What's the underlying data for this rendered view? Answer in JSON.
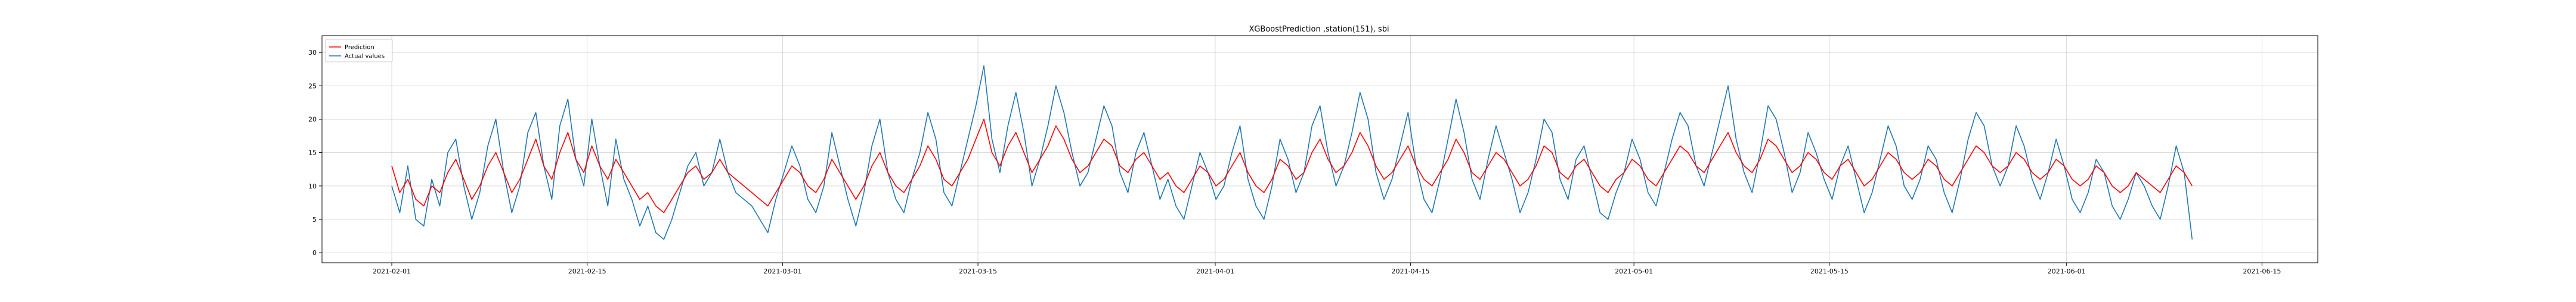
{
  "chart_data": {
    "type": "line",
    "title": "XGBoostPrediction ,station(151), sbi",
    "xlabel": "",
    "ylabel": "",
    "x_start": "2021-02-01",
    "x_end": "2021-06-10",
    "xlim": [
      "2021-01-27",
      "2021-06-19"
    ],
    "ylim": [
      -1.5,
      32.5
    ],
    "x_ticks": [
      "2021-02-01",
      "2021-02-15",
      "2021-03-01",
      "2021-03-15",
      "2021-04-01",
      "2021-04-15",
      "2021-05-01",
      "2021-05-15",
      "2021-06-01",
      "2021-06-15"
    ],
    "y_ticks": [
      0,
      5,
      10,
      15,
      20,
      25,
      30
    ],
    "y_tick_labels": [
      "0",
      "5",
      "10",
      "15",
      "20",
      "25",
      "30"
    ],
    "grid": true,
    "legend_position": "top-left",
    "series": [
      {
        "name": "Prediction",
        "color": "#ff0000",
        "values": [
          13,
          9,
          11,
          8,
          7,
          10,
          9,
          12,
          14,
          11,
          8,
          10,
          13,
          15,
          12,
          9,
          11,
          14,
          17,
          13,
          11,
          15,
          18,
          14,
          12,
          16,
          13,
          11,
          14,
          12,
          10,
          8,
          9,
          7,
          6,
          8,
          10,
          12,
          13,
          11,
          12,
          14,
          12,
          11,
          10,
          9,
          8,
          7,
          9,
          11,
          13,
          12,
          10,
          9,
          11,
          14,
          12,
          10,
          8,
          10,
          13,
          15,
          12,
          10,
          9,
          11,
          13,
          16,
          14,
          11,
          10,
          12,
          14,
          17,
          20,
          15,
          13,
          16,
          18,
          15,
          12,
          14,
          16,
          19,
          17,
          14,
          12,
          13,
          15,
          17,
          16,
          13,
          12,
          14,
          15,
          13,
          11,
          12,
          10,
          9,
          11,
          13,
          12,
          10,
          11,
          13,
          15,
          12,
          10,
          9,
          11,
          14,
          13,
          11,
          12,
          15,
          17,
          14,
          12,
          13,
          15,
          18,
          16,
          13,
          11,
          12,
          14,
          16,
          13,
          11,
          10,
          12,
          14,
          17,
          15,
          12,
          11,
          13,
          15,
          14,
          12,
          10,
          11,
          13,
          16,
          15,
          12,
          11,
          13,
          14,
          12,
          10,
          9,
          11,
          12,
          14,
          13,
          11,
          10,
          12,
          14,
          16,
          15,
          13,
          12,
          14,
          16,
          18,
          15,
          13,
          12,
          14,
          17,
          16,
          14,
          12,
          13,
          15,
          14,
          12,
          11,
          13,
          14,
          12,
          10,
          11,
          13,
          15,
          14,
          12,
          11,
          12,
          14,
          13,
          11,
          10,
          12,
          14,
          16,
          15,
          13,
          12,
          13,
          15,
          14,
          12,
          11,
          12,
          14,
          13,
          11,
          10,
          11,
          13,
          12,
          10,
          9,
          10,
          12,
          11,
          10,
          9,
          11,
          13,
          12,
          10
        ]
      },
      {
        "name": "Actual values",
        "color": "#1f77b4",
        "values": [
          10,
          6,
          13,
          5,
          4,
          11,
          7,
          15,
          17,
          10,
          5,
          9,
          16,
          20,
          12,
          6,
          10,
          18,
          21,
          13,
          8,
          19,
          23,
          14,
          10,
          20,
          13,
          7,
          17,
          11,
          8,
          4,
          7,
          3,
          2,
          5,
          9,
          13,
          15,
          10,
          12,
          17,
          12,
          9,
          8,
          7,
          5,
          3,
          8,
          12,
          16,
          13,
          8,
          6,
          10,
          18,
          13,
          8,
          4,
          9,
          16,
          20,
          12,
          8,
          6,
          11,
          15,
          21,
          17,
          9,
          7,
          12,
          17,
          22,
          28,
          17,
          12,
          19,
          24,
          18,
          10,
          14,
          19,
          25,
          21,
          15,
          10,
          12,
          17,
          22,
          19,
          12,
          9,
          15,
          18,
          13,
          8,
          11,
          7,
          5,
          10,
          15,
          12,
          8,
          10,
          15,
          19,
          11,
          7,
          5,
          10,
          17,
          14,
          9,
          12,
          19,
          22,
          15,
          10,
          13,
          18,
          24,
          20,
          12,
          8,
          11,
          16,
          21,
          13,
          8,
          6,
          11,
          17,
          23,
          18,
          11,
          8,
          14,
          19,
          15,
          11,
          6,
          9,
          14,
          20,
          18,
          11,
          8,
          14,
          16,
          11,
          6,
          5,
          9,
          12,
          17,
          14,
          9,
          7,
          12,
          17,
          21,
          19,
          13,
          10,
          15,
          20,
          25,
          17,
          12,
          9,
          15,
          22,
          20,
          15,
          9,
          12,
          18,
          15,
          11,
          8,
          13,
          16,
          11,
          6,
          9,
          14,
          19,
          16,
          10,
          8,
          11,
          16,
          14,
          9,
          6,
          11,
          17,
          21,
          19,
          13,
          10,
          13,
          19,
          16,
          11,
          8,
          12,
          17,
          13,
          8,
          6,
          9,
          14,
          12,
          7,
          5,
          8,
          12,
          10,
          7,
          5,
          10,
          16,
          12,
          2
        ]
      }
    ]
  }
}
